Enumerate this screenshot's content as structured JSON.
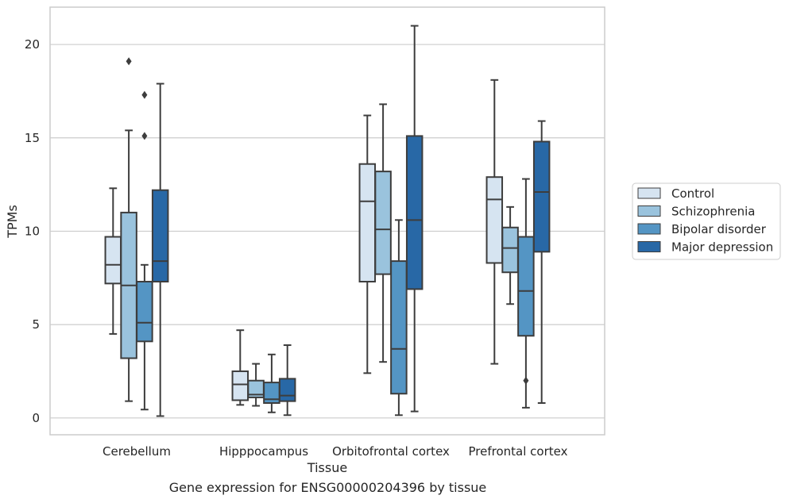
{
  "caption": "Gene expression for ENSG00000204396 by tissue",
  "colors": {
    "Control": "#d6e4f1",
    "Schizophrenia": "#9ac3dd",
    "Bipolar disorder": "#5495c4",
    "Major depression": "#2868a6",
    "box_edge": "#3d3d3d",
    "grid": "#cccccc"
  },
  "chart_data": {
    "type": "box",
    "xlabel": "Tissue",
    "ylabel": "TPMs",
    "ylim": [
      -0.9,
      22
    ],
    "yticks": [
      0,
      5,
      10,
      15,
      20
    ],
    "grid": "horizontal",
    "legend_position": "right",
    "categories": [
      "Cerebellum",
      "Hipppocampus",
      "Orbitofrontal cortex",
      "Prefrontal cortex"
    ],
    "series": [
      {
        "name": "Control",
        "boxes": [
          {
            "whislo": 4.5,
            "q1": 7.2,
            "med": 8.2,
            "q3": 9.7,
            "whishi": 12.3,
            "fliers": []
          },
          {
            "whislo": 0.7,
            "q1": 0.95,
            "med": 1.8,
            "q3": 2.5,
            "whishi": 4.7,
            "fliers": []
          },
          {
            "whislo": 2.4,
            "q1": 7.3,
            "med": 11.6,
            "q3": 13.6,
            "whishi": 16.2,
            "fliers": []
          },
          {
            "whislo": 2.9,
            "q1": 8.3,
            "med": 11.7,
            "q3": 12.9,
            "whishi": 18.1,
            "fliers": []
          }
        ]
      },
      {
        "name": "Schizophrenia",
        "boxes": [
          {
            "whislo": 0.9,
            "q1": 3.2,
            "med": 7.1,
            "q3": 11.0,
            "whishi": 15.4,
            "fliers": [
              19.1
            ]
          },
          {
            "whislo": 0.65,
            "q1": 1.1,
            "med": 1.25,
            "q3": 2.0,
            "whishi": 2.9,
            "fliers": []
          },
          {
            "whislo": 3.0,
            "q1": 7.7,
            "med": 10.1,
            "q3": 13.2,
            "whishi": 16.8,
            "fliers": []
          },
          {
            "whislo": 6.1,
            "q1": 7.8,
            "med": 9.1,
            "q3": 10.2,
            "whishi": 11.3,
            "fliers": []
          }
        ]
      },
      {
        "name": "Bipolar disorder",
        "boxes": [
          {
            "whislo": 0.45,
            "q1": 4.1,
            "med": 5.1,
            "q3": 7.3,
            "whishi": 8.2,
            "fliers": [
              15.1,
              17.3
            ]
          },
          {
            "whislo": 0.3,
            "q1": 0.8,
            "med": 1.0,
            "q3": 1.9,
            "whishi": 3.4,
            "fliers": []
          },
          {
            "whislo": 0.15,
            "q1": 1.3,
            "med": 3.7,
            "q3": 8.4,
            "whishi": 10.6,
            "fliers": []
          },
          {
            "whislo": 0.55,
            "q1": 4.4,
            "med": 6.8,
            "q3": 9.7,
            "whishi": 12.8,
            "fliers": [
              2.0
            ]
          }
        ]
      },
      {
        "name": "Major depression",
        "boxes": [
          {
            "whislo": 0.1,
            "q1": 7.3,
            "med": 8.4,
            "q3": 12.2,
            "whishi": 17.9,
            "fliers": []
          },
          {
            "whislo": 0.15,
            "q1": 0.9,
            "med": 1.2,
            "q3": 2.1,
            "whishi": 3.9,
            "fliers": []
          },
          {
            "whislo": 0.35,
            "q1": 6.9,
            "med": 10.6,
            "q3": 15.1,
            "whishi": 21.0,
            "fliers": []
          },
          {
            "whislo": 0.8,
            "q1": 8.9,
            "med": 12.1,
            "q3": 14.8,
            "whishi": 15.9,
            "fliers": []
          }
        ]
      }
    ]
  }
}
